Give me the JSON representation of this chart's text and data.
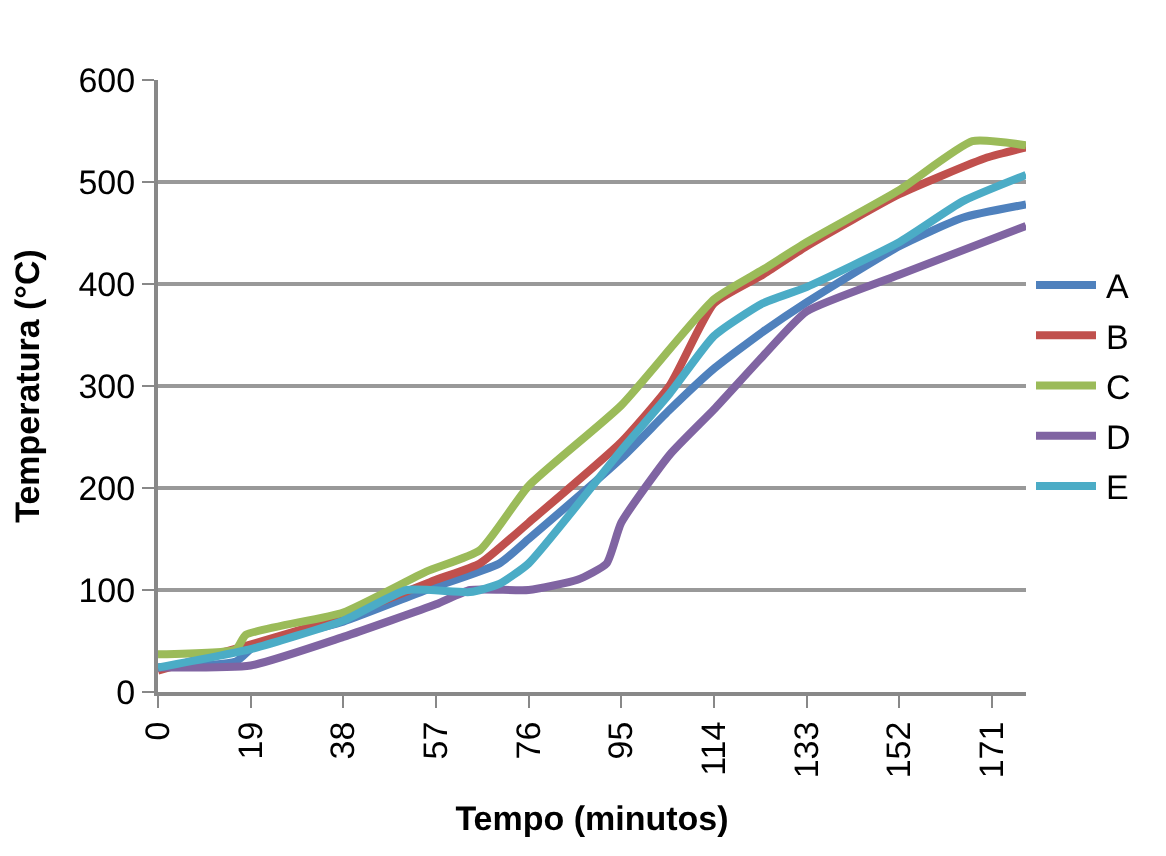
{
  "chart_data": {
    "type": "line",
    "xlabel": "Tempo (minutos)",
    "ylabel": "Temperatura (°C)",
    "xlim": [
      0,
      178
    ],
    "xticks": [
      0,
      19,
      38,
      57,
      76,
      95,
      114,
      133,
      152,
      171
    ],
    "ylim": [
      0,
      600
    ],
    "yticks": [
      0,
      100,
      200,
      300,
      400,
      500,
      600
    ],
    "grid": "y",
    "legend": "right",
    "marker": "none",
    "line_style": "solid",
    "series": [
      {
        "name": "A",
        "color": "#4f81bd",
        "x": [
          0,
          16,
          20,
          38,
          55,
          70,
          76,
          95,
          105,
          114,
          124,
          133,
          152,
          165,
          178
        ],
        "values": [
          24,
          30,
          46,
          69,
          100,
          126,
          150,
          229,
          277,
          317,
          353,
          382,
          437,
          465,
          478
        ]
      },
      {
        "name": "B",
        "color": "#c0504d",
        "x": [
          0,
          20,
          38,
          57,
          66,
          76,
          95,
          105,
          114,
          124,
          133,
          152,
          170,
          178
        ],
        "values": [
          21,
          48,
          74,
          110,
          126,
          166,
          245,
          301,
          381,
          409,
          437,
          488,
          524,
          534
        ]
      },
      {
        "name": "C",
        "color": "#9bbb59",
        "x": [
          0,
          16,
          18,
          38,
          55,
          66,
          76,
          95,
          114,
          124,
          133,
          152,
          167,
          178
        ],
        "values": [
          37,
          42,
          56,
          78,
          118,
          139,
          202,
          281,
          385,
          414,
          441,
          492,
          540,
          536
        ]
      },
      {
        "name": "D",
        "color": "#8064a2",
        "x": [
          0,
          19,
          38,
          57,
          64,
          76,
          86,
          92,
          95,
          105,
          114,
          124,
          133,
          152,
          178
        ],
        "values": [
          24,
          26,
          54,
          86,
          100,
          100,
          110,
          126,
          166,
          233,
          277,
          329,
          373,
          409,
          457
        ]
      },
      {
        "name": "E",
        "color": "#4bacc6",
        "x": [
          0,
          19,
          38,
          51,
          64,
          70,
          76,
          95,
          105,
          114,
          124,
          133,
          152,
          165,
          178
        ],
        "values": [
          24,
          42,
          70,
          100,
          98,
          106,
          126,
          237,
          293,
          349,
          381,
          397,
          441,
          481,
          507
        ]
      }
    ]
  }
}
